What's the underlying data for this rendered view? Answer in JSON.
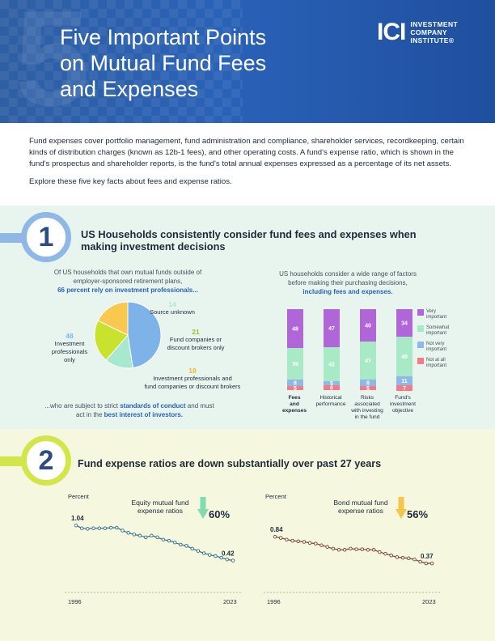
{
  "header": {
    "title_lines": [
      "Five Important Points",
      "on Mutual Fund Fees",
      "and Expenses"
    ],
    "big_number": "5",
    "logo_mark": "ICI",
    "logo_lines": [
      "INVESTMENT",
      "COMPANY",
      "INSTITUTE®"
    ]
  },
  "intro": {
    "p1": "Fund expenses cover portfolio management, fund administration and compliance, shareholder services, recordkeeping, certain kinds of distribution charges (known as 12b-1 fees), and other operating costs. A fund's expense ratio, which is shown in the fund's prospectus and shareholder reports, is the fund's total annual expenses expressed as a percentage of its net assets.",
    "p2": "Explore these five key facts about fees and expense ratios."
  },
  "section1": {
    "number": "1",
    "title": "US Households consistently consider fund fees and expenses when making investment decisions",
    "left_caption_1": "Of US households that own mutual funds outside of employer-sponsored retirement plans,",
    "left_caption_hl": "66 percent rely on investment professionals...",
    "bottom_caption_1": "...who are subject to strict",
    "bottom_caption_hl1": "standards of conduct",
    "bottom_caption_2": "and must act in the",
    "bottom_caption_hl2": "best interest of investors.",
    "right_caption_1": "US households consider a wide range of factors before making their purchasing decisions,",
    "right_caption_hl": "including fees and expenses.",
    "pie": [
      {
        "value": 48,
        "num": "48",
        "label_lines": [
          "Investment",
          "professionals",
          "only"
        ],
        "color": "#7eb3ea"
      },
      {
        "value": 14,
        "num": "14",
        "label_lines": [
          "Source unknown"
        ],
        "color": "#a8e8cf"
      },
      {
        "value": 21,
        "num": "21",
        "label_lines": [
          "Fund companies or",
          "discount brokers only"
        ],
        "color": "#c8e22e"
      },
      {
        "value": 18,
        "num": "18",
        "label_lines": [
          "Investment professionals and",
          "fund companies or discount brokers"
        ],
        "color": "#f8c84f"
      }
    ],
    "pie_num_colors": [
      "#7eb3ea",
      "#a8e8cf",
      "#9fbf1a",
      "#f2b630"
    ],
    "bar_chart": {
      "categories": [
        [
          "Fees",
          "and",
          "expenses"
        ],
        [
          "Historical",
          "performance"
        ],
        [
          "Risks",
          "associated",
          "with investing",
          "in the fund"
        ],
        [
          "Fund's",
          "investment",
          "objective"
        ]
      ],
      "series": [
        {
          "name": "Very important",
          "color": "#b065d8",
          "values": [
            48,
            47,
            40,
            34
          ]
        },
        {
          "name": "Somewhat important",
          "color": "#a9eac6",
          "values": [
            39,
            42,
            47,
            49
          ]
        },
        {
          "name": "Not very important",
          "color": "#8fb8e6",
          "values": [
            8,
            5,
            8,
            11
          ]
        },
        {
          "name": "Not at all important",
          "color": "#f07c88",
          "values": [
            5,
            6,
            5,
            7
          ]
        }
      ],
      "legend_labels": [
        [
          "Very",
          "important"
        ],
        [
          "Somewhat",
          "important"
        ],
        [
          "Not very",
          "important"
        ],
        [
          "Not at all",
          "important"
        ]
      ]
    }
  },
  "section2": {
    "number": "2",
    "title": "Fund expense ratios are down substantially over past 27 years",
    "charts": [
      {
        "type": "line",
        "ylabel": "Percent",
        "callout": [
          "Equity mutual fund",
          "expense ratios"
        ],
        "pct": "60%",
        "arrow_color": "#7fdcae",
        "x_start": "1996",
        "x_end": "2023",
        "start_label": "1.04",
        "end_label": "0.42",
        "line_color": "#2f6f7f",
        "x": [
          1996,
          1997,
          1998,
          1999,
          2000,
          2001,
          2002,
          2003,
          2004,
          2005,
          2006,
          2007,
          2008,
          2009,
          2010,
          2011,
          2012,
          2013,
          2014,
          2015,
          2016,
          2017,
          2018,
          2019,
          2020,
          2021,
          2022,
          2023
        ],
        "values": [
          1.04,
          0.99,
          0.98,
          0.99,
          0.99,
          0.99,
          1.0,
          1.0,
          0.95,
          0.91,
          0.88,
          0.86,
          0.83,
          0.86,
          0.83,
          0.79,
          0.77,
          0.74,
          0.7,
          0.68,
          0.63,
          0.59,
          0.55,
          0.52,
          0.5,
          0.47,
          0.44,
          0.42
        ],
        "ylim": [
          0,
          1.2
        ]
      },
      {
        "type": "line",
        "ylabel": "Percent",
        "callout": [
          "Bond mutual fund",
          "expense ratios"
        ],
        "pct": "56%",
        "arrow_color": "#f6c64a",
        "x_start": "1996",
        "x_end": "2023",
        "start_label": "0.84",
        "end_label": "0.37",
        "line_color": "#7a3f2f",
        "x": [
          1996,
          1997,
          1998,
          1999,
          2000,
          2001,
          2002,
          2003,
          2004,
          2005,
          2006,
          2007,
          2008,
          2009,
          2010,
          2011,
          2012,
          2013,
          2014,
          2015,
          2016,
          2017,
          2018,
          2019,
          2020,
          2021,
          2022,
          2023
        ],
        "values": [
          0.84,
          0.82,
          0.79,
          0.77,
          0.76,
          0.75,
          0.73,
          0.72,
          0.69,
          0.66,
          0.63,
          0.61,
          0.61,
          0.63,
          0.62,
          0.62,
          0.61,
          0.61,
          0.57,
          0.54,
          0.51,
          0.48,
          0.47,
          0.46,
          0.44,
          0.4,
          0.37,
          0.37
        ],
        "ylim": [
          0,
          1.2
        ]
      }
    ]
  }
}
